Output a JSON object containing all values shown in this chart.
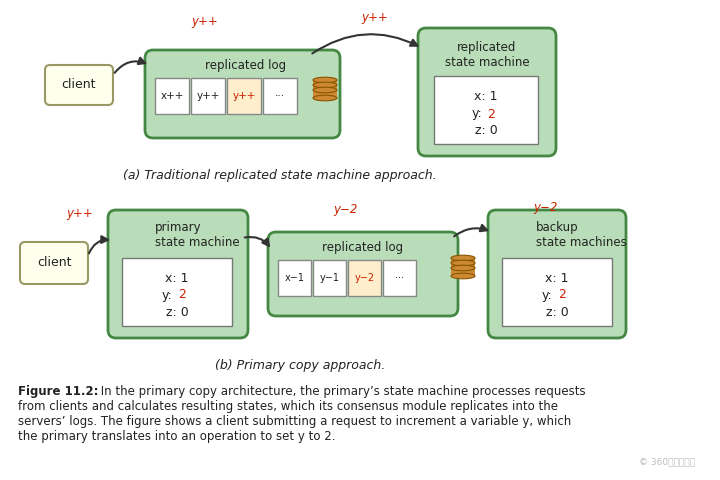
{
  "bg_color": "#ffffff",
  "light_yellow": "#ffffee",
  "light_green": "#b8ddb8",
  "cell_highlight": "#ffeecc",
  "white": "#ffffff",
  "red": "#cc2200",
  "dark_text": "#222222",
  "green_edge": "#448844",
  "yellow_edge": "#999966",
  "gray_edge": "#777777",
  "db_color": "#cc8833",
  "db_edge": "#885500",
  "caption_a": "(a) Traditional replicated state machine approach.",
  "caption_b": "(b) Primary copy approach.",
  "fig_bold": "Figure 11.2:",
  "fig_rest": " In the primary copy architecture, the primary’s state machine processes requests\nfrom clients and calculates resulting states, which its consensus module replicates into the\nservers’ logs. The figure shows a client submitting a request to increment a variable y, which\nthe primary translates into an operation to set y to 2.",
  "watermark": "© 360基础架构组"
}
